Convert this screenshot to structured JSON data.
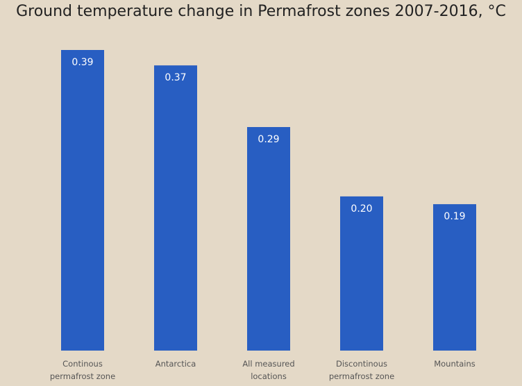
{
  "chart_data": {
    "type": "bar",
    "title": "Ground temperature change in Permafrost zones 2007-2016, °C",
    "xlabel": "",
    "ylabel": "",
    "categories": [
      [
        "Continous",
        "permafrost zone"
      ],
      [
        "Antarctica"
      ],
      [
        "All measured",
        "locations"
      ],
      [
        "Discontinous",
        "permafrost zone"
      ],
      [
        "Mountains"
      ]
    ],
    "values": [
      0.39,
      0.37,
      0.29,
      0.2,
      0.19
    ],
    "value_labels": [
      "0.39",
      "0.37",
      "0.29",
      "0.20",
      "0.19"
    ],
    "ylim": [
      0,
      0.39
    ],
    "grid": false,
    "legend": "none",
    "colors": {
      "bar": "#285ec2",
      "background": "#e4d9c7",
      "bar_label": "#ffffff",
      "category_label": "#555555",
      "title": "#222222"
    }
  }
}
